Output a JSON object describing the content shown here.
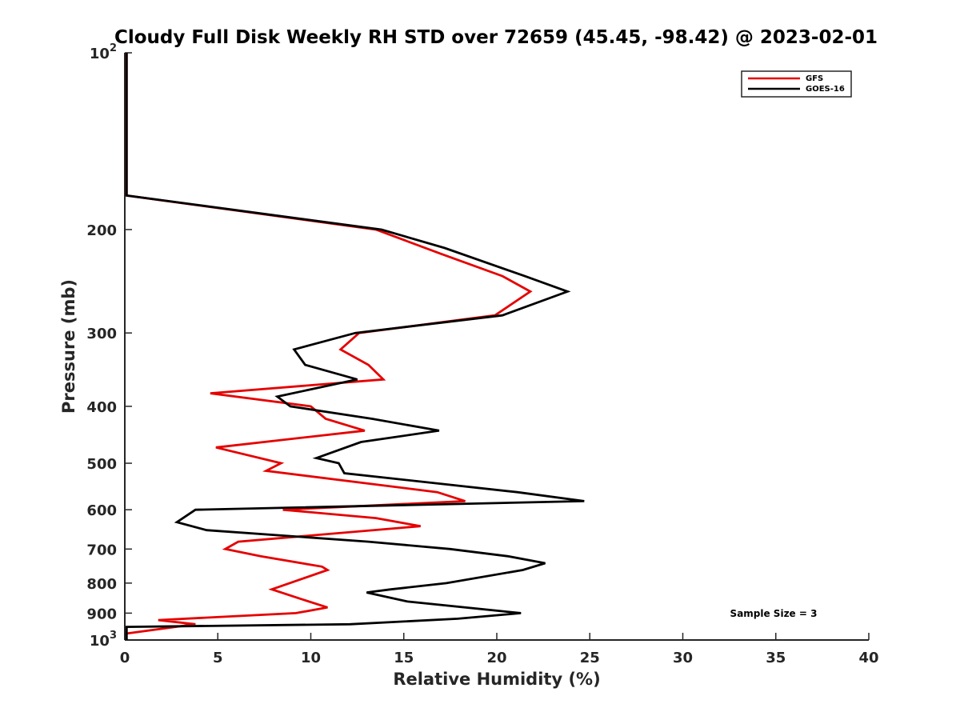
{
  "chart_data": {
    "type": "line",
    "title": "Cloudy Full Disk Weekly RH STD over 72659 (45.45, -98.42) @ 2023-02-01",
    "xlabel": "Relative Humidity (%)",
    "ylabel": "Pressure (mb)",
    "xlim": [
      0,
      40
    ],
    "ylim": [
      100,
      1000
    ],
    "y_scale": "log",
    "y_reversed": true,
    "x_ticks": [
      0,
      5,
      10,
      15,
      20,
      25,
      30,
      35,
      40
    ],
    "y_ticks": [
      {
        "value": 100,
        "base": "10",
        "exp": "2"
      },
      {
        "value": 200,
        "label": "200"
      },
      {
        "value": 300,
        "label": "300"
      },
      {
        "value": 400,
        "label": "400"
      },
      {
        "value": 500,
        "label": "500"
      },
      {
        "value": 600,
        "label": "600"
      },
      {
        "value": 700,
        "label": "700"
      },
      {
        "value": 800,
        "label": "800"
      },
      {
        "value": 900,
        "label": "900"
      },
      {
        "value": 1000,
        "base": "10",
        "exp": "3"
      }
    ],
    "grid": false,
    "legend_position": "top-right",
    "series": [
      {
        "name": "GFS",
        "color": "#e60000",
        "points": [
          {
            "x": 0.1,
            "p": 100
          },
          {
            "x": 0.1,
            "p": 175
          },
          {
            "x": 13.5,
            "p": 200
          },
          {
            "x": 17,
            "p": 220
          },
          {
            "x": 20.3,
            "p": 240
          },
          {
            "x": 21.8,
            "p": 255
          },
          {
            "x": 19.9,
            "p": 280
          },
          {
            "x": 12.6,
            "p": 300
          },
          {
            "x": 11.6,
            "p": 320
          },
          {
            "x": 13.1,
            "p": 340
          },
          {
            "x": 13.9,
            "p": 360
          },
          {
            "x": 4.6,
            "p": 380
          },
          {
            "x": 10.0,
            "p": 400
          },
          {
            "x": 10.8,
            "p": 420
          },
          {
            "x": 12.9,
            "p": 440
          },
          {
            "x": 4.9,
            "p": 470
          },
          {
            "x": 8.4,
            "p": 500
          },
          {
            "x": 7.6,
            "p": 515
          },
          {
            "x": 16.8,
            "p": 560
          },
          {
            "x": 18.3,
            "p": 580
          },
          {
            "x": 8.5,
            "p": 600
          },
          {
            "x": 13.5,
            "p": 620
          },
          {
            "x": 15.9,
            "p": 640
          },
          {
            "x": 6.1,
            "p": 680
          },
          {
            "x": 5.4,
            "p": 700
          },
          {
            "x": 7.3,
            "p": 720
          },
          {
            "x": 10.6,
            "p": 750
          },
          {
            "x": 10.9,
            "p": 760
          },
          {
            "x": 7.9,
            "p": 820
          },
          {
            "x": 9.4,
            "p": 850
          },
          {
            "x": 10.9,
            "p": 880
          },
          {
            "x": 9.2,
            "p": 900
          },
          {
            "x": 1.8,
            "p": 925
          },
          {
            "x": 3.8,
            "p": 940
          },
          {
            "x": 0.1,
            "p": 975
          }
        ]
      },
      {
        "name": "GOES-16",
        "color": "#000000",
        "points": [
          {
            "x": 0.1,
            "p": 100
          },
          {
            "x": 0.1,
            "p": 175
          },
          {
            "x": 13.8,
            "p": 200
          },
          {
            "x": 17.2,
            "p": 215
          },
          {
            "x": 21.5,
            "p": 240
          },
          {
            "x": 23.8,
            "p": 255
          },
          {
            "x": 20.3,
            "p": 280
          },
          {
            "x": 12.4,
            "p": 300
          },
          {
            "x": 9.1,
            "p": 320
          },
          {
            "x": 9.7,
            "p": 340
          },
          {
            "x": 12.5,
            "p": 360
          },
          {
            "x": 8.2,
            "p": 385
          },
          {
            "x": 8.9,
            "p": 400
          },
          {
            "x": 13.3,
            "p": 420
          },
          {
            "x": 16.9,
            "p": 440
          },
          {
            "x": 12.7,
            "p": 460
          },
          {
            "x": 10.3,
            "p": 490
          },
          {
            "x": 11.5,
            "p": 500
          },
          {
            "x": 11.8,
            "p": 520
          },
          {
            "x": 21.1,
            "p": 560
          },
          {
            "x": 24.7,
            "p": 580
          },
          {
            "x": 3.8,
            "p": 600
          },
          {
            "x": 2.8,
            "p": 630
          },
          {
            "x": 4.4,
            "p": 650
          },
          {
            "x": 13.1,
            "p": 680
          },
          {
            "x": 17.5,
            "p": 700
          },
          {
            "x": 20.6,
            "p": 720
          },
          {
            "x": 22.6,
            "p": 740
          },
          {
            "x": 21.4,
            "p": 760
          },
          {
            "x": 17.3,
            "p": 800
          },
          {
            "x": 14.3,
            "p": 820
          },
          {
            "x": 13.0,
            "p": 830
          },
          {
            "x": 15.2,
            "p": 860
          },
          {
            "x": 21.3,
            "p": 900
          },
          {
            "x": 17.9,
            "p": 920
          },
          {
            "x": 12.1,
            "p": 940
          },
          {
            "x": 0.1,
            "p": 950
          },
          {
            "x": 0.1,
            "p": 1000
          }
        ]
      }
    ],
    "annotation": "Sample Size = 3"
  }
}
